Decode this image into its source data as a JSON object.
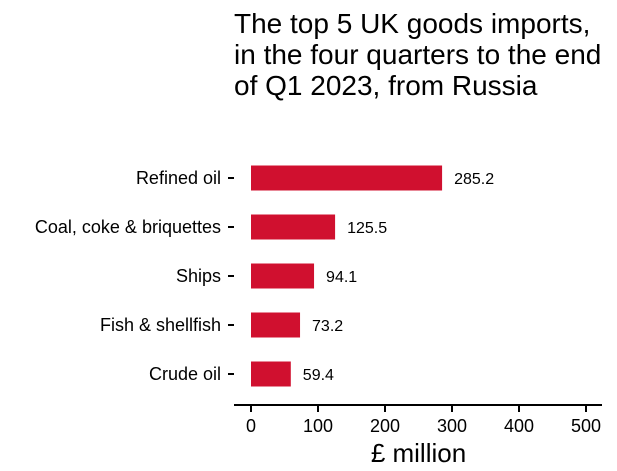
{
  "chart_data": {
    "type": "bar",
    "orientation": "horizontal",
    "title": "The top 5 UK goods imports, in the four quarters to the end of Q1 2023, from Russia",
    "xlabel": "£ million",
    "ylabel": "",
    "categories": [
      "Refined oil",
      "Coal, coke & briquettes",
      "Ships",
      "Fish & shellfish",
      "Crude oil"
    ],
    "values": [
      285.2,
      125.5,
      94.1,
      73.2,
      59.4
    ],
    "data_labels": [
      "285.2",
      "125.5",
      "94.1",
      "73.2",
      "59.4"
    ],
    "xlim": [
      0,
      500
    ],
    "xticks": [
      0,
      100,
      200,
      300,
      400,
      500
    ],
    "xtick_labels": [
      "0",
      "100",
      "200",
      "300",
      "400",
      "500"
    ],
    "grid": false,
    "legend": "none",
    "bar_color": "#d0102f"
  }
}
